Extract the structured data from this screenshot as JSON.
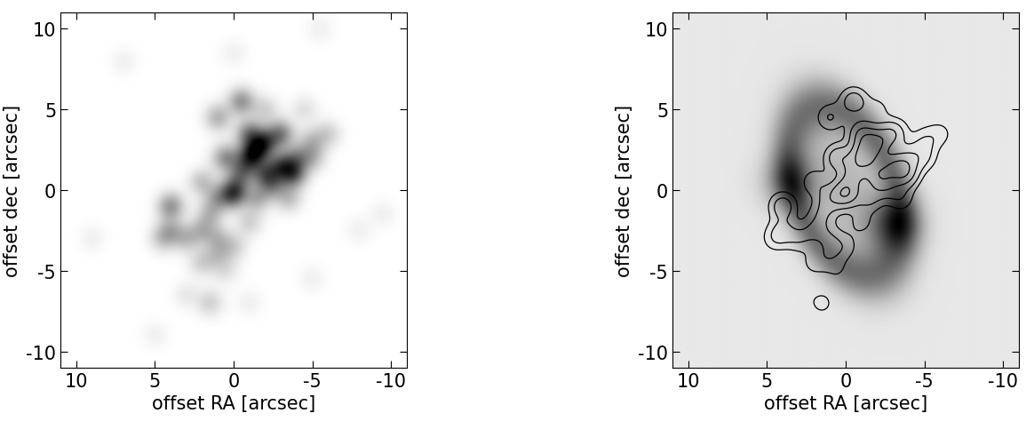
{
  "chart_data": [
    {
      "type": "image",
      "x_label": "offset RA [arcsec]",
      "y_label": "offset dec [arcsec]",
      "xlim": [
        11,
        -11
      ],
      "ylim": [
        -11,
        11
      ],
      "xticks": [
        10,
        5,
        0,
        -5,
        -10
      ],
      "yticks": [
        -10,
        -5,
        0,
        5,
        10
      ],
      "sources": [
        [
          -1,
          2,
          1.0
        ],
        [
          -2,
          3,
          0.9
        ],
        [
          -3,
          1.5,
          0.9
        ],
        [
          -3.8,
          1,
          1.0
        ],
        [
          -2,
          1,
          0.8
        ],
        [
          -1,
          3.5,
          0.8
        ],
        [
          -3,
          3.5,
          0.8
        ],
        [
          0.5,
          2,
          0.7
        ],
        [
          -0.5,
          1,
          0.7
        ],
        [
          -0.5,
          5.5,
          0.7
        ],
        [
          0,
          0,
          0.6
        ],
        [
          0,
          -0.3,
          0.7
        ],
        [
          1,
          -0.5,
          0.5
        ],
        [
          -1.5,
          -0.5,
          0.5
        ],
        [
          -4,
          2,
          0.6
        ],
        [
          -5,
          3,
          0.4
        ],
        [
          -6,
          3.5,
          0.3
        ],
        [
          -5,
          2,
          0.4
        ],
        [
          1,
          4.5,
          0.5
        ],
        [
          2,
          0.5,
          0.4
        ],
        [
          1.5,
          -1.5,
          0.4
        ],
        [
          2,
          -2.5,
          0.4
        ],
        [
          4,
          -1,
          0.7
        ],
        [
          4,
          -2.5,
          0.4
        ],
        [
          3,
          -3,
          0.4
        ],
        [
          4.5,
          -3,
          0.35
        ],
        [
          1,
          -3,
          0.35
        ],
        [
          1,
          -4,
          0.3
        ],
        [
          2,
          -4.5,
          0.3
        ],
        [
          0,
          -3.5,
          0.3
        ],
        [
          -1,
          -2,
          0.3
        ],
        [
          1.5,
          -7,
          0.3
        ],
        [
          -1.5,
          2.5,
          0.8
        ],
        [
          -2.5,
          0.3,
          0.6
        ],
        [
          -3.5,
          -0.5,
          0.4
        ],
        [
          0.5,
          -5,
          0.2
        ],
        [
          7,
          8,
          0.1
        ],
        [
          9,
          -3,
          0.1
        ],
        [
          5,
          -9,
          0.1
        ],
        [
          -5.5,
          10,
          0.1
        ],
        [
          -9.5,
          -1.5,
          0.1
        ],
        [
          -8,
          -2.5,
          0.1
        ],
        [
          3,
          -6.5,
          0.15
        ],
        [
          -5,
          -5.5,
          0.1
        ],
        [
          -1,
          -7,
          0.1
        ],
        [
          0,
          8.5,
          0.1
        ],
        [
          -2,
          5,
          0.3
        ],
        [
          -4.5,
          5,
          0.2
        ]
      ]
    },
    {
      "type": "image_contour",
      "x_label": "offset RA [arcsec]",
      "y_label": "offset dec [arcsec]",
      "xlim": [
        11,
        -11
      ],
      "ylim": [
        -11,
        11
      ],
      "xticks": [
        10,
        5,
        0,
        -5,
        -10
      ],
      "yticks": [
        -10,
        -5,
        0,
        5,
        10
      ],
      "ring": {
        "center": [
          0,
          0
        ],
        "semi_major": 5.5,
        "semi_minor": 3.2,
        "angle_deg": 68
      },
      "peaks": [
        [
          3.5,
          0.5,
          0.8
        ],
        [
          -3,
          -2,
          1.0
        ]
      ],
      "contour_levels": [
        0.12,
        0.25,
        0.45,
        0.7
      ]
    }
  ]
}
